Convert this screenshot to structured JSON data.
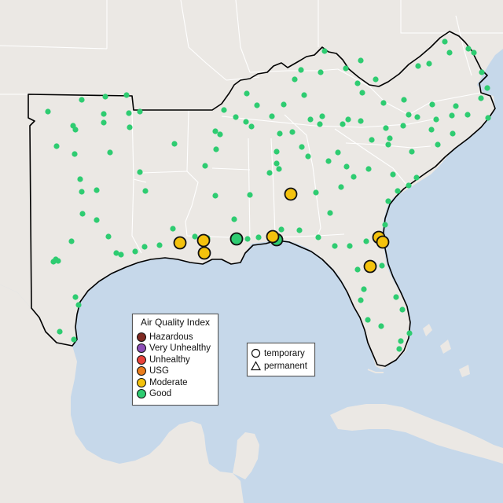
{
  "legend": {
    "title": "Air Quality Index",
    "categories": [
      {
        "label": "Hazardous",
        "color": "#7e2a22"
      },
      {
        "label": "Very Unhealthy",
        "color": "#8e4fb8"
      },
      {
        "label": "Unhealthy",
        "color": "#e8423a"
      },
      {
        "label": "USG",
        "color": "#ea7d1c"
      },
      {
        "label": "Moderate",
        "color": "#f4c20d"
      },
      {
        "label": "Good",
        "color": "#2ecc71"
      }
    ]
  },
  "monitor_types": {
    "temporary": "temporary",
    "permanent": "permanent"
  },
  "colors": {
    "water": "#c6d8ea",
    "land": "#ebe8e4",
    "region_border": "#000000",
    "state_border": "#ffffff",
    "good": "#2ecc71",
    "moderate": "#f4c20d"
  }
}
